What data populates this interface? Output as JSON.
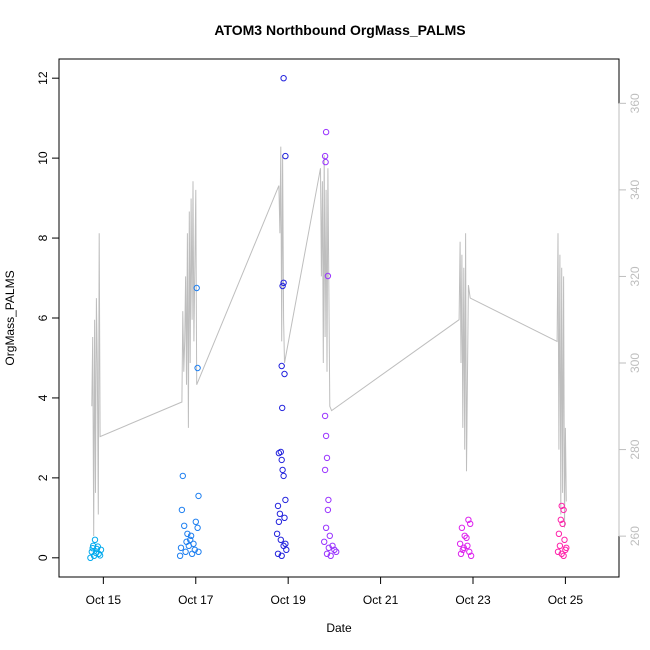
{
  "chart_data": {
    "type": "scatter",
    "title": "ATOM3 Northbound OrgMass_PALMS",
    "xlabel": "Date",
    "ylabel": "OrgMass_PALMS",
    "x_ticks": [
      {
        "x": 14.8,
        "label": "Oct 15"
      },
      {
        "x": 16.8,
        "label": "Oct 17"
      },
      {
        "x": 18.8,
        "label": "Oct 19"
      },
      {
        "x": 20.8,
        "label": "Oct 21"
      },
      {
        "x": 22.8,
        "label": "Oct 23"
      },
      {
        "x": 24.8,
        "label": "Oct 25"
      }
    ],
    "xlim": [
      13.84,
      25.96
    ],
    "ylim": [
      -0.48,
      12.48
    ],
    "y_ticks": [
      0,
      2,
      4,
      6,
      8,
      10,
      12
    ],
    "y2lim": [
      250.56,
      370.24
    ],
    "y2_ticks": [
      260,
      280,
      300,
      320,
      340,
      360
    ],
    "grid": false,
    "legend": "none",
    "points": [
      {
        "x": 14.62,
        "y": 0.45,
        "c": "#00aaee"
      },
      {
        "x": 14.58,
        "y": 0.3,
        "c": "#00aaee"
      },
      {
        "x": 14.66,
        "y": 0.22,
        "c": "#00aaee"
      },
      {
        "x": 14.55,
        "y": 0.15,
        "c": "#00aaee"
      },
      {
        "x": 14.7,
        "y": 0.1,
        "c": "#00aaee"
      },
      {
        "x": 14.6,
        "y": 0.05,
        "c": "#00aaee"
      },
      {
        "x": 14.75,
        "y": 0.2,
        "c": "#00aaee"
      },
      {
        "x": 14.52,
        "y": 0.0,
        "c": "#00aaee"
      },
      {
        "x": 14.68,
        "y": 0.28,
        "c": "#00aaee"
      },
      {
        "x": 14.64,
        "y": 0.12,
        "c": "#00aaee"
      },
      {
        "x": 14.73,
        "y": 0.06,
        "c": "#00aaee"
      },
      {
        "x": 14.57,
        "y": 0.24,
        "c": "#00aaee"
      },
      {
        "x": 16.52,
        "y": 2.05,
        "c": "#1e7ff0"
      },
      {
        "x": 16.5,
        "y": 1.2,
        "c": "#1e7ff0"
      },
      {
        "x": 16.55,
        "y": 0.8,
        "c": "#1e7ff0"
      },
      {
        "x": 16.62,
        "y": 0.6,
        "c": "#1e7ff0"
      },
      {
        "x": 16.68,
        "y": 0.45,
        "c": "#1e7ff0"
      },
      {
        "x": 16.75,
        "y": 0.35,
        "c": "#1e7ff0"
      },
      {
        "x": 16.8,
        "y": 0.9,
        "c": "#1e7ff0"
      },
      {
        "x": 16.84,
        "y": 0.75,
        "c": "#1e7ff0"
      },
      {
        "x": 16.48,
        "y": 0.25,
        "c": "#1e7ff0"
      },
      {
        "x": 16.58,
        "y": 0.15,
        "c": "#1e7ff0"
      },
      {
        "x": 16.65,
        "y": 0.3,
        "c": "#1e7ff0"
      },
      {
        "x": 16.72,
        "y": 0.1,
        "c": "#1e7ff0"
      },
      {
        "x": 16.78,
        "y": 0.2,
        "c": "#1e7ff0"
      },
      {
        "x": 16.46,
        "y": 0.05,
        "c": "#1e7ff0"
      },
      {
        "x": 16.86,
        "y": 0.15,
        "c": "#1e7ff0"
      },
      {
        "x": 16.82,
        "y": 6.75,
        "c": "#1e7ff0"
      },
      {
        "x": 16.84,
        "y": 4.75,
        "c": "#1e7ff0"
      },
      {
        "x": 16.86,
        "y": 1.55,
        "c": "#1e7ff0"
      },
      {
        "x": 16.6,
        "y": 0.4,
        "c": "#1e7ff0"
      },
      {
        "x": 16.7,
        "y": 0.55,
        "c": "#1e7ff0"
      },
      {
        "x": 18.7,
        "y": 12.0,
        "c": "#2222dd"
      },
      {
        "x": 18.74,
        "y": 10.05,
        "c": "#2222dd"
      },
      {
        "x": 18.68,
        "y": 6.8,
        "c": "#2222dd"
      },
      {
        "x": 18.7,
        "y": 6.88,
        "c": "#2222dd"
      },
      {
        "x": 18.66,
        "y": 4.8,
        "c": "#2222dd"
      },
      {
        "x": 18.72,
        "y": 4.6,
        "c": "#2222dd"
      },
      {
        "x": 18.67,
        "y": 3.75,
        "c": "#2222dd"
      },
      {
        "x": 18.6,
        "y": 2.62,
        "c": "#2222dd"
      },
      {
        "x": 18.64,
        "y": 2.65,
        "c": "#2222dd"
      },
      {
        "x": 18.66,
        "y": 2.45,
        "c": "#2222dd"
      },
      {
        "x": 18.68,
        "y": 2.2,
        "c": "#2222dd"
      },
      {
        "x": 18.7,
        "y": 2.05,
        "c": "#2222dd"
      },
      {
        "x": 18.74,
        "y": 1.45,
        "c": "#2222dd"
      },
      {
        "x": 18.58,
        "y": 1.3,
        "c": "#2222dd"
      },
      {
        "x": 18.62,
        "y": 1.1,
        "c": "#2222dd"
      },
      {
        "x": 18.6,
        "y": 0.9,
        "c": "#2222dd"
      },
      {
        "x": 18.72,
        "y": 1.0,
        "c": "#2222dd"
      },
      {
        "x": 18.56,
        "y": 0.6,
        "c": "#2222dd"
      },
      {
        "x": 18.64,
        "y": 0.45,
        "c": "#2222dd"
      },
      {
        "x": 18.7,
        "y": 0.3,
        "c": "#2222dd"
      },
      {
        "x": 18.76,
        "y": 0.2,
        "c": "#2222dd"
      },
      {
        "x": 18.58,
        "y": 0.1,
        "c": "#2222dd"
      },
      {
        "x": 18.66,
        "y": 0.05,
        "c": "#2222dd"
      },
      {
        "x": 18.74,
        "y": 0.35,
        "c": "#2222dd"
      },
      {
        "x": 19.62,
        "y": 10.65,
        "c": "#9933ff"
      },
      {
        "x": 19.6,
        "y": 10.05,
        "c": "#9933ff"
      },
      {
        "x": 19.61,
        "y": 9.9,
        "c": "#9933ff"
      },
      {
        "x": 19.66,
        "y": 7.05,
        "c": "#9933ff"
      },
      {
        "x": 19.6,
        "y": 3.55,
        "c": "#9933ff"
      },
      {
        "x": 19.62,
        "y": 3.05,
        "c": "#9933ff"
      },
      {
        "x": 19.64,
        "y": 2.5,
        "c": "#9933ff"
      },
      {
        "x": 19.6,
        "y": 2.2,
        "c": "#9933ff"
      },
      {
        "x": 19.67,
        "y": 1.45,
        "c": "#9933ff"
      },
      {
        "x": 19.66,
        "y": 1.2,
        "c": "#9933ff"
      },
      {
        "x": 19.62,
        "y": 0.75,
        "c": "#9933ff"
      },
      {
        "x": 19.7,
        "y": 0.55,
        "c": "#9933ff"
      },
      {
        "x": 19.58,
        "y": 0.4,
        "c": "#9933ff"
      },
      {
        "x": 19.76,
        "y": 0.3,
        "c": "#9933ff"
      },
      {
        "x": 19.8,
        "y": 0.2,
        "c": "#9933ff"
      },
      {
        "x": 19.64,
        "y": 0.1,
        "c": "#9933ff"
      },
      {
        "x": 19.72,
        "y": 0.05,
        "c": "#9933ff"
      },
      {
        "x": 19.84,
        "y": 0.15,
        "c": "#9933ff"
      },
      {
        "x": 19.68,
        "y": 0.25,
        "c": "#9933ff"
      },
      {
        "x": 22.56,
        "y": 0.75,
        "c": "#dd22ee"
      },
      {
        "x": 22.62,
        "y": 0.55,
        "c": "#dd22ee"
      },
      {
        "x": 22.7,
        "y": 0.95,
        "c": "#dd22ee"
      },
      {
        "x": 22.74,
        "y": 0.85,
        "c": "#dd22ee"
      },
      {
        "x": 22.52,
        "y": 0.35,
        "c": "#dd22ee"
      },
      {
        "x": 22.6,
        "y": 0.25,
        "c": "#dd22ee"
      },
      {
        "x": 22.66,
        "y": 0.5,
        "c": "#dd22ee"
      },
      {
        "x": 22.72,
        "y": 0.15,
        "c": "#dd22ee"
      },
      {
        "x": 22.54,
        "y": 0.1,
        "c": "#dd22ee"
      },
      {
        "x": 22.68,
        "y": 0.3,
        "c": "#dd22ee"
      },
      {
        "x": 22.76,
        "y": 0.05,
        "c": "#dd22ee"
      },
      {
        "x": 22.58,
        "y": 0.2,
        "c": "#dd22ee"
      },
      {
        "x": 24.72,
        "y": 1.3,
        "c": "#ff22aa"
      },
      {
        "x": 24.76,
        "y": 1.2,
        "c": "#ff22aa"
      },
      {
        "x": 24.7,
        "y": 0.95,
        "c": "#ff22aa"
      },
      {
        "x": 24.74,
        "y": 0.85,
        "c": "#ff22aa"
      },
      {
        "x": 24.66,
        "y": 0.6,
        "c": "#ff22aa"
      },
      {
        "x": 24.78,
        "y": 0.45,
        "c": "#ff22aa"
      },
      {
        "x": 24.68,
        "y": 0.3,
        "c": "#ff22aa"
      },
      {
        "x": 24.8,
        "y": 0.2,
        "c": "#ff22aa"
      },
      {
        "x": 24.72,
        "y": 0.1,
        "c": "#ff22aa"
      },
      {
        "x": 24.76,
        "y": 0.05,
        "c": "#ff22aa"
      },
      {
        "x": 24.64,
        "y": 0.15,
        "c": "#ff22aa"
      },
      {
        "x": 24.82,
        "y": 0.25,
        "c": "#ff22aa"
      }
    ],
    "line_y2": [
      [
        14.55,
        290
      ],
      [
        14.57,
        306
      ],
      [
        14.59,
        260
      ],
      [
        14.61,
        310
      ],
      [
        14.63,
        270
      ],
      [
        14.65,
        315
      ],
      [
        14.67,
        300
      ],
      [
        14.69,
        265
      ],
      [
        14.71,
        330
      ],
      [
        14.73,
        283
      ],
      [
        16.5,
        291
      ],
      [
        16.52,
        312
      ],
      [
        16.54,
        298
      ],
      [
        16.56,
        305
      ],
      [
        16.58,
        320
      ],
      [
        16.6,
        295
      ],
      [
        16.62,
        330
      ],
      [
        16.64,
        285
      ],
      [
        16.66,
        335
      ],
      [
        16.68,
        300
      ],
      [
        16.7,
        338
      ],
      [
        16.72,
        310
      ],
      [
        16.74,
        342
      ],
      [
        16.76,
        305
      ],
      [
        16.8,
        340
      ],
      [
        16.82,
        295
      ],
      [
        18.6,
        341
      ],
      [
        18.62,
        330
      ],
      [
        18.64,
        350
      ],
      [
        18.66,
        305
      ],
      [
        18.68,
        348
      ],
      [
        18.7,
        310
      ],
      [
        18.72,
        300
      ],
      [
        19.5,
        345
      ],
      [
        19.52,
        320
      ],
      [
        19.54,
        342
      ],
      [
        19.56,
        300
      ],
      [
        19.58,
        348
      ],
      [
        19.6,
        306
      ],
      [
        19.62,
        340
      ],
      [
        19.64,
        298
      ],
      [
        19.66,
        345
      ],
      [
        19.7,
        290
      ],
      [
        19.74,
        289
      ],
      [
        22.5,
        310
      ],
      [
        22.52,
        328
      ],
      [
        22.54,
        300
      ],
      [
        22.56,
        325
      ],
      [
        22.58,
        285
      ],
      [
        22.6,
        322
      ],
      [
        22.62,
        280
      ],
      [
        22.64,
        330
      ],
      [
        22.66,
        275
      ],
      [
        22.7,
        318
      ],
      [
        22.74,
        315
      ],
      [
        24.62,
        305
      ],
      [
        24.64,
        330
      ],
      [
        24.66,
        280
      ],
      [
        24.68,
        325
      ],
      [
        24.7,
        265
      ],
      [
        24.72,
        322
      ],
      [
        24.74,
        270
      ],
      [
        24.76,
        320
      ],
      [
        24.78,
        262
      ],
      [
        24.8,
        285
      ],
      [
        24.82,
        268
      ]
    ]
  }
}
